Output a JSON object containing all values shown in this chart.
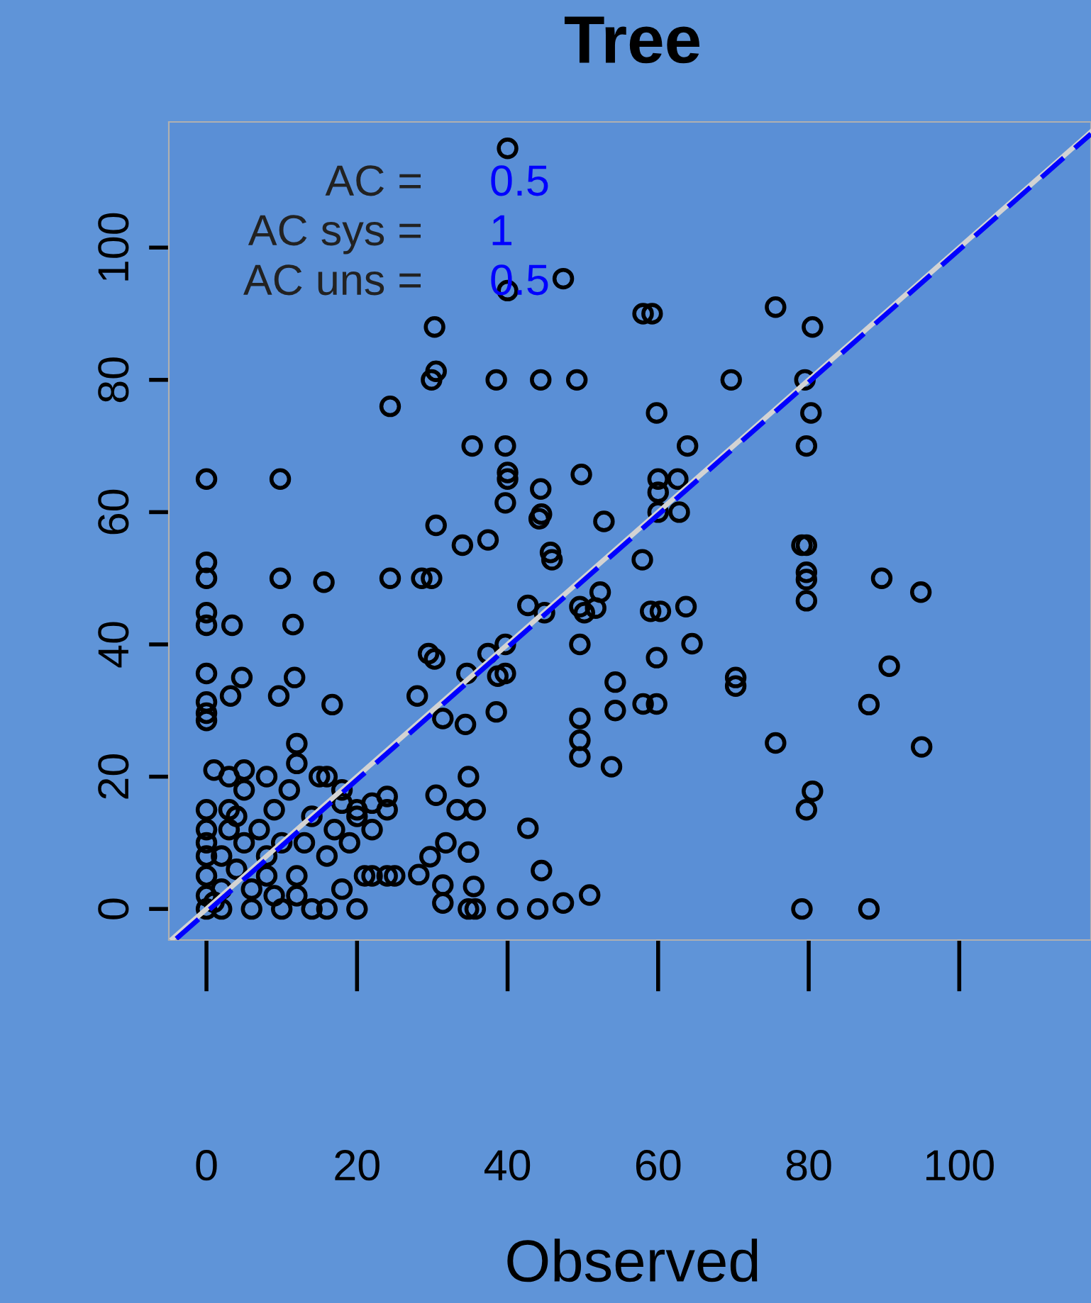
{
  "chart_data": {
    "type": "scatter",
    "title": "Tree",
    "xlabel": "Observed",
    "xlim": [
      -5,
      117.5
    ],
    "ylim": [
      -4.7,
      119
    ],
    "xticks": [
      0,
      20,
      40,
      60,
      80,
      100
    ],
    "yticks": [
      0,
      20,
      40,
      60,
      80,
      100
    ],
    "grid": false,
    "legend": false,
    "marker": "circle",
    "annotations": [
      "AC =",
      "0.5",
      "AC sys =",
      "1",
      "AC uns =",
      "0.5"
    ],
    "series": [
      {
        "color": "#000000",
        "x": [
          40,
          47.4,
          40,
          30.3,
          30.5,
          29.9,
          24.4,
          38.5,
          44.4,
          49.2,
          58,
          59.2,
          75.6,
          80.5,
          69.7,
          79.5,
          80.3,
          79.7,
          59.8,
          63.9,
          60,
          60,
          60,
          62.6,
          62.8,
          35.3,
          39.7,
          40,
          40,
          39.7,
          44.4,
          44.5,
          44.2,
          49.8,
          52.8,
          45.7,
          45.9,
          37.4,
          34,
          30.5,
          0,
          9.8,
          0,
          0,
          0,
          0,
          3.4,
          9.8,
          11.5,
          15.6,
          24.4,
          28.6,
          29.9,
          0,
          0,
          0,
          0,
          3.2,
          4.7,
          9.6,
          11.7,
          16.7,
          28,
          29.5,
          30.3,
          34.6,
          37.4,
          39.7,
          38.7,
          38.5,
          34.4,
          31.4,
          42.7,
          44.9,
          39.7,
          49.6,
          50.2,
          51.7,
          52.3,
          49.6,
          54.3,
          49.6,
          49.6,
          49.6,
          54.3,
          53.8,
          57.9,
          59,
          60.3,
          63.7,
          64.5,
          59.8,
          58,
          59.8,
          70.3,
          70.3,
          75.6,
          79.1,
          79.7,
          79.7,
          79.7,
          79.7,
          89.7,
          94.9,
          90.7,
          88,
          95,
          80.5,
          79.7,
          79.1,
          88,
          34.8,
          30.5,
          35.7,
          33.3,
          42.7,
          34.8,
          29.7,
          31.8,
          31.4,
          35.5,
          31.4,
          34.8,
          35.7,
          40,
          44,
          44.5,
          47.4,
          50.9,
          28.2,
          22,
          24,
          0,
          0,
          0,
          0,
          0,
          0,
          0,
          1,
          2,
          2,
          3,
          3,
          4,
          5,
          5,
          5,
          6,
          7,
          8,
          8,
          9,
          10,
          10,
          11,
          12,
          12,
          12,
          13,
          14,
          14,
          15,
          16,
          17,
          18,
          18,
          19,
          20,
          20,
          21,
          22,
          24,
          24,
          25,
          2,
          6,
          16,
          12,
          8,
          3,
          1,
          9,
          4,
          16,
          18,
          20,
          22
        ],
        "values": [
          115,
          95.3,
          93.5,
          88,
          81.3,
          80,
          76,
          80,
          80,
          80,
          90,
          90,
          91,
          88,
          80,
          80,
          75,
          70,
          75,
          70,
          65,
          63,
          60,
          65,
          60,
          70,
          70,
          66,
          65,
          61.4,
          63.5,
          59.7,
          59,
          65.7,
          58.6,
          53.9,
          52.8,
          55.8,
          55,
          58,
          65,
          65,
          52.4,
          50,
          44.8,
          42.9,
          42.9,
          50,
          43,
          49.4,
          50,
          50,
          50,
          35.6,
          31.3,
          29.6,
          28.5,
          32.2,
          35,
          32.2,
          35,
          30.9,
          32.2,
          38.6,
          37.8,
          35.6,
          38.6,
          35.6,
          35.2,
          29.8,
          27.9,
          28.8,
          45.9,
          44.8,
          40,
          45.7,
          44.8,
          45.5,
          47.9,
          40,
          34.3,
          28.8,
          25.5,
          23,
          30,
          21.5,
          52.8,
          45,
          45,
          45.7,
          40.1,
          38,
          31,
          31,
          35,
          33.7,
          25.1,
          55,
          55,
          50.9,
          49.8,
          46.6,
          50,
          47.9,
          36.7,
          30.9,
          24.5,
          17.8,
          15,
          0,
          0,
          20,
          17.2,
          15,
          15,
          12.2,
          8.6,
          7.9,
          10,
          3.6,
          3.4,
          0.9,
          0,
          0,
          0,
          0,
          5.8,
          0.9,
          2.1,
          5.2,
          5,
          5,
          0,
          2,
          5,
          8,
          10,
          12,
          15,
          1,
          3,
          8,
          12,
          15,
          6,
          10,
          18,
          21,
          3,
          12,
          20,
          5,
          15,
          10,
          0,
          18,
          22,
          25,
          5,
          10,
          14,
          0,
          20,
          8,
          12,
          3,
          18,
          10,
          15,
          0,
          5,
          12,
          15,
          17,
          5,
          0,
          0,
          0,
          2,
          8,
          20,
          21,
          2,
          14,
          20,
          16,
          14,
          16
        ]
      },
      {
        "type": "line",
        "color": "#d3d3d3",
        "line_style": "solid",
        "marker": "none",
        "x": [
          -4.5,
          117.5
        ],
        "values": [
          -4.5,
          117.5
        ]
      },
      {
        "type": "line",
        "color": "#0000ff",
        "line_style": "dashed",
        "marker": "none",
        "x": [
          -4,
          117.5
        ],
        "values": [
          -4.5,
          117.2
        ]
      }
    ]
  }
}
